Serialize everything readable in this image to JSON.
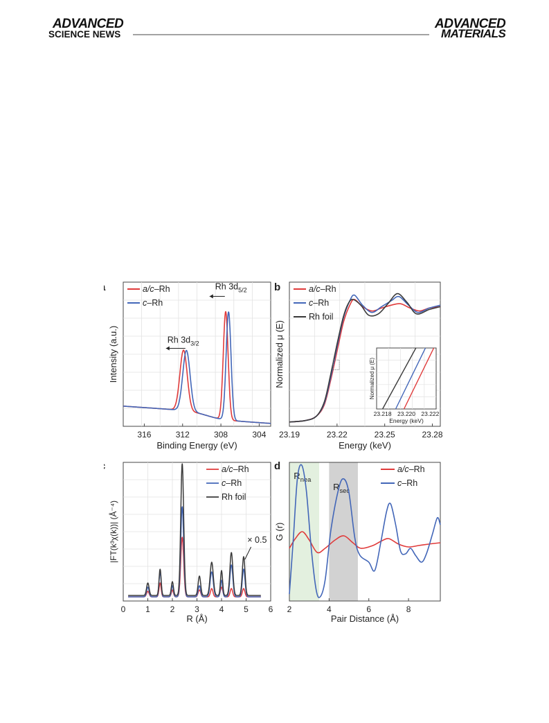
{
  "header": {
    "left_logo_top": "ADVANCED",
    "left_logo_bottom": "SCIENCE NEWS",
    "right_logo_top": "ADVANCED",
    "right_logo_bottom": "MATERIALS"
  },
  "colors": {
    "red": "#e03a3a",
    "blue": "#4266b8",
    "black": "#3a3a3a",
    "green_band": "#e3f0df",
    "gray_band": "#d2d2d2"
  },
  "chart_data": [
    {
      "panel": "a",
      "type": "line",
      "xlabel": "Binding Energy (eV)",
      "ylabel": "Intensity (a.u.)",
      "xlim": [
        318.2,
        302.8
      ],
      "x_ticks": [
        316,
        312,
        308,
        304
      ],
      "x_reversed": true,
      "annotations": [
        {
          "text": "Rh 3d",
          "sub": "3/2",
          "x": 312.0,
          "y": 0.56
        },
        {
          "text": "Rh 3d",
          "sub": "5/2",
          "x": 307.3,
          "y": 0.93
        }
      ],
      "series": [
        {
          "name": "a/c–Rh",
          "color": "red",
          "peaks": [
            [
              311.9,
              0.42,
              0.9
            ],
            [
              307.5,
              0.75,
              0.6
            ]
          ],
          "baseline": [
            0.09,
            0.02
          ]
        },
        {
          "name": "c–Rh",
          "color": "blue",
          "peaks": [
            [
              311.6,
              0.42,
              0.9
            ],
            [
              307.2,
              0.75,
              0.6
            ]
          ],
          "baseline": [
            0.09,
            0.02
          ]
        }
      ]
    },
    {
      "panel": "b",
      "type": "line",
      "xlabel": "Energy (keV)",
      "ylabel": "Normalized μ (E)",
      "xlim": [
        23.19,
        23.285
      ],
      "x_ticks": [
        23.19,
        23.22,
        23.25,
        23.28
      ],
      "series": [
        {
          "name": "a/c–Rh",
          "color": "red",
          "points": [
            [
              23.19,
              0.03
            ],
            [
              23.2,
              0.04
            ],
            [
              23.207,
              0.07
            ],
            [
              23.212,
              0.15
            ],
            [
              23.216,
              0.32
            ],
            [
              23.22,
              0.52
            ],
            [
              23.224,
              0.72
            ],
            [
              23.228,
              0.84
            ],
            [
              23.231,
              0.88
            ],
            [
              23.236,
              0.83
            ],
            [
              23.242,
              0.8
            ],
            [
              23.248,
              0.82
            ],
            [
              23.254,
              0.84
            ],
            [
              23.26,
              0.85
            ],
            [
              23.266,
              0.82
            ],
            [
              23.272,
              0.8
            ],
            [
              23.278,
              0.82
            ],
            [
              23.285,
              0.83
            ]
          ]
        },
        {
          "name": "c–Rh",
          "color": "blue",
          "points": [
            [
              23.19,
              0.03
            ],
            [
              23.2,
              0.04
            ],
            [
              23.207,
              0.07
            ],
            [
              23.212,
              0.16
            ],
            [
              23.216,
              0.34
            ],
            [
              23.22,
              0.55
            ],
            [
              23.224,
              0.75
            ],
            [
              23.228,
              0.87
            ],
            [
              23.231,
              0.91
            ],
            [
              23.236,
              0.84
            ],
            [
              23.242,
              0.79
            ],
            [
              23.248,
              0.83
            ],
            [
              23.254,
              0.87
            ],
            [
              23.259,
              0.9
            ],
            [
              23.265,
              0.84
            ],
            [
              23.271,
              0.79
            ],
            [
              23.278,
              0.82
            ],
            [
              23.285,
              0.84
            ]
          ]
        },
        {
          "name": "Rh foil",
          "color": "black",
          "points": [
            [
              23.19,
              0.03
            ],
            [
              23.2,
              0.04
            ],
            [
              23.207,
              0.07
            ],
            [
              23.212,
              0.17
            ],
            [
              23.216,
              0.36
            ],
            [
              23.22,
              0.57
            ],
            [
              23.224,
              0.76
            ],
            [
              23.227,
              0.85
            ],
            [
              23.23,
              0.88
            ],
            [
              23.235,
              0.84
            ],
            [
              23.24,
              0.77
            ],
            [
              23.246,
              0.78
            ],
            [
              23.252,
              0.85
            ],
            [
              23.258,
              0.92
            ],
            [
              23.264,
              0.86
            ],
            [
              23.27,
              0.78
            ],
            [
              23.278,
              0.81
            ],
            [
              23.285,
              0.83
            ]
          ]
        }
      ],
      "inset": {
        "xlabel": "Energy (keV)",
        "ylabel": "Normalized μ (E)",
        "x_ticks": [
          23.218,
          23.22,
          23.222
        ],
        "x_tick_labels": [
          "23.218",
          "23.220",
          "23.222"
        ],
        "xlim": [
          23.2175,
          23.2225
        ],
        "lines": [
          {
            "color": "black",
            "x": [
              23.218,
              23.2208
            ]
          },
          {
            "color": "blue",
            "x": [
              23.2191,
              23.2216
            ]
          },
          {
            "color": "red",
            "x": [
              23.2198,
              23.2223
            ]
          }
        ]
      }
    },
    {
      "panel": "c",
      "type": "line",
      "xlabel": "R (Å)",
      "ylabel": "|FT(k³χ(k))| (Å⁻⁴)",
      "xlim": [
        0,
        6
      ],
      "x_ticks": [
        0,
        1,
        2,
        3,
        4,
        5,
        6
      ],
      "annotation": "× 0.5",
      "series": [
        {
          "name": "a/c–Rh",
          "color": "red",
          "peaks": [
            [
              1.0,
              0.04,
              0.12
            ],
            [
              1.5,
              0.1,
              0.1
            ],
            [
              2.0,
              0.05,
              0.1
            ],
            [
              2.4,
              0.43,
              0.14
            ],
            [
              3.1,
              0.05,
              0.12
            ],
            [
              3.6,
              0.06,
              0.12
            ],
            [
              4.0,
              0.07,
              0.12
            ],
            [
              4.4,
              0.06,
              0.12
            ],
            [
              4.9,
              0.06,
              0.12
            ]
          ],
          "baseline": 0.03
        },
        {
          "name": "c–Rh",
          "color": "blue",
          "peaks": [
            [
              1.0,
              0.07,
              0.12
            ],
            [
              1.5,
              0.18,
              0.1
            ],
            [
              2.0,
              0.08,
              0.1
            ],
            [
              2.4,
              0.65,
              0.14
            ],
            [
              3.1,
              0.08,
              0.12
            ],
            [
              3.6,
              0.18,
              0.15
            ],
            [
              4.0,
              0.12,
              0.1
            ],
            [
              4.4,
              0.23,
              0.14
            ],
            [
              4.9,
              0.2,
              0.13
            ]
          ],
          "baseline": 0.03
        },
        {
          "name": "Rh foil",
          "color": "black",
          "peaks": [
            [
              1.0,
              0.09,
              0.12
            ],
            [
              1.5,
              0.19,
              0.1
            ],
            [
              2.0,
              0.1,
              0.1
            ],
            [
              2.4,
              0.95,
              0.14
            ],
            [
              3.1,
              0.14,
              0.12
            ],
            [
              3.6,
              0.24,
              0.15
            ],
            [
              4.0,
              0.18,
              0.1
            ],
            [
              4.4,
              0.31,
              0.14
            ],
            [
              4.9,
              0.28,
              0.13
            ]
          ],
          "baseline": 0.04
        }
      ]
    },
    {
      "panel": "d",
      "type": "line",
      "xlabel": "Pair Distance (Å)",
      "ylabel": "G (r)",
      "xlim": [
        2,
        9.6
      ],
      "x_ticks": [
        2,
        4,
        6,
        8
      ],
      "bands": [
        {
          "label": "R",
          "sub": "nea",
          "range": [
            2.0,
            3.5
          ],
          "color": "green_band"
        },
        {
          "label": "R",
          "sub": "sec",
          "range": [
            4.0,
            5.45
          ],
          "color": "gray_band"
        }
      ],
      "series": [
        {
          "name": "a/c–Rh",
          "color": "red",
          "points": [
            [
              2.0,
              0.38
            ],
            [
              2.3,
              0.45
            ],
            [
              2.65,
              0.5
            ],
            [
              3.0,
              0.44
            ],
            [
              3.4,
              0.35
            ],
            [
              3.8,
              0.38
            ],
            [
              4.3,
              0.44
            ],
            [
              4.75,
              0.47
            ],
            [
              5.2,
              0.42
            ],
            [
              5.6,
              0.38
            ],
            [
              6.2,
              0.4
            ],
            [
              6.6,
              0.43
            ],
            [
              7.0,
              0.45
            ],
            [
              7.5,
              0.41
            ],
            [
              8.0,
              0.39
            ],
            [
              8.5,
              0.4
            ],
            [
              9.0,
              0.41
            ],
            [
              9.6,
              0.42
            ]
          ]
        },
        {
          "name": "c–Rh",
          "color": "blue",
          "points": [
            [
              2.0,
              0.05
            ],
            [
              2.2,
              0.45
            ],
            [
              2.4,
              0.88
            ],
            [
              2.62,
              0.98
            ],
            [
              2.85,
              0.8
            ],
            [
              3.1,
              0.38
            ],
            [
              3.35,
              0.08
            ],
            [
              3.55,
              0.03
            ],
            [
              3.8,
              0.15
            ],
            [
              4.1,
              0.52
            ],
            [
              4.5,
              0.82
            ],
            [
              4.75,
              0.88
            ],
            [
              5.0,
              0.78
            ],
            [
              5.3,
              0.45
            ],
            [
              5.55,
              0.33
            ],
            [
              6.0,
              0.28
            ],
            [
              6.3,
              0.22
            ],
            [
              6.6,
              0.42
            ],
            [
              6.9,
              0.65
            ],
            [
              7.1,
              0.7
            ],
            [
              7.35,
              0.55
            ],
            [
              7.6,
              0.36
            ],
            [
              7.85,
              0.34
            ],
            [
              8.1,
              0.38
            ],
            [
              8.35,
              0.33
            ],
            [
              8.65,
              0.28
            ],
            [
              8.9,
              0.34
            ],
            [
              9.2,
              0.48
            ],
            [
              9.45,
              0.6
            ],
            [
              9.6,
              0.55
            ]
          ]
        }
      ]
    }
  ]
}
